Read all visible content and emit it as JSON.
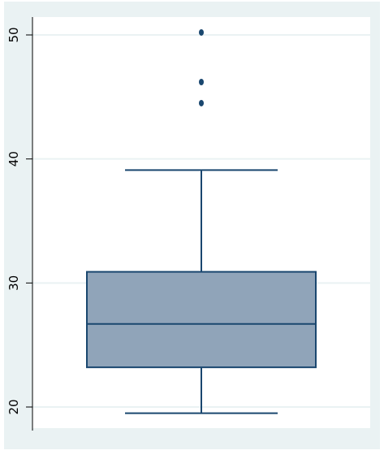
{
  "chart_data": {
    "type": "box",
    "title": "",
    "xlabel": "",
    "ylabel": "",
    "ylim": [
      19.2,
      51.5
    ],
    "yticks": [
      20,
      30,
      40,
      50
    ],
    "grid": true,
    "box": {
      "whisker_low": 19.5,
      "q1": 23.2,
      "median": 26.7,
      "q3": 30.9,
      "whisker_high": 39.1,
      "outliers": [
        44.5,
        46.2,
        50.2
      ]
    },
    "colors": {
      "background": "#eaf2f3",
      "plot": "#ffffff",
      "grid": "#eaf2f3",
      "box_fill": "#90a4b9",
      "line": "#1a476f",
      "axis": "#000000",
      "text": "#000000"
    }
  }
}
